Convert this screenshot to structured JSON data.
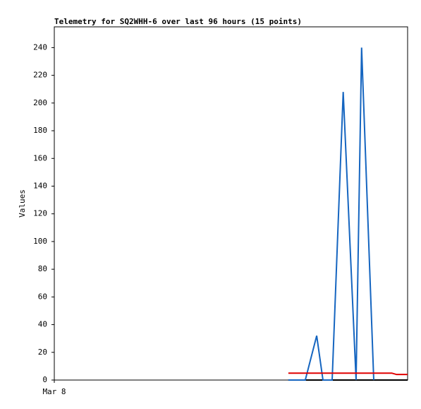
{
  "chart_data": {
    "type": "line",
    "title": "Telemetry for SQ2WHH-6 over last 96 hours (15 points)",
    "y_label": "Values",
    "x": [
      63.6,
      68.2,
      71.3,
      73.0,
      75.5,
      78.5,
      82.0,
      83.5,
      86.8,
      88.5,
      90.0,
      91.7,
      93.0,
      94.5,
      96.0
    ],
    "xlim": [
      0,
      96
    ],
    "xticks": [
      {
        "value": 0,
        "label": "Mar 8"
      }
    ],
    "ylim": [
      0,
      255
    ],
    "yticks": [
      0,
      20,
      40,
      60,
      80,
      100,
      120,
      140,
      160,
      180,
      200,
      220,
      240
    ],
    "grid": false,
    "series": [
      {
        "color": "#000000",
        "values": [
          0,
          0,
          0,
          0,
          0,
          0,
          0,
          0,
          0,
          0,
          0,
          0,
          0,
          0,
          0
        ]
      },
      {
        "color": "#1565c0",
        "values": [
          0,
          0,
          32,
          0,
          0,
          208,
          0,
          240,
          0,
          null,
          null,
          null,
          null,
          null,
          null
        ]
      },
      {
        "color": "#e00000",
        "values": [
          5,
          5,
          5,
          5,
          5,
          5,
          5,
          5,
          5,
          5,
          5,
          5,
          4,
          4,
          4
        ]
      }
    ]
  }
}
